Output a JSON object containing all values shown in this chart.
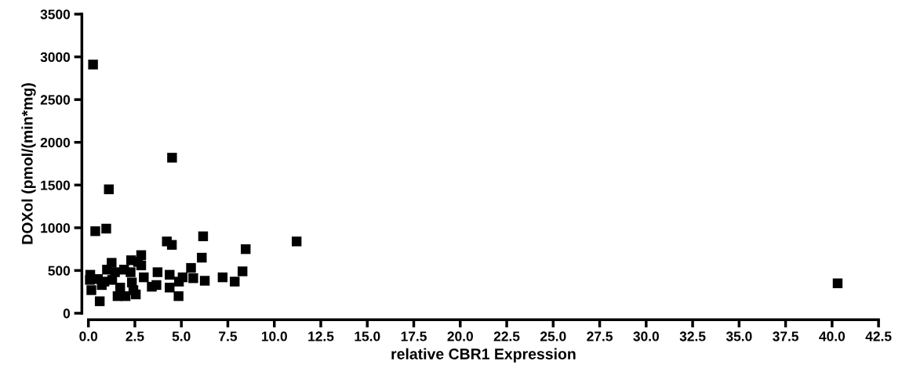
{
  "chart_data": {
    "type": "scatter",
    "xlabel": "relative CBR1 Expression",
    "ylabel": "DOXol (pmol/(min*mg)",
    "marker": "square",
    "grid": false,
    "xlim": [
      0,
      42.5
    ],
    "xticks": [
      {
        "value": 0,
        "label": "0.0"
      },
      {
        "value": 2.5,
        "label": "2.5"
      },
      {
        "value": 5,
        "label": "5.0"
      },
      {
        "value": 7.5,
        "label": "7.5"
      },
      {
        "value": 10,
        "label": "10.0"
      },
      {
        "value": 12.5,
        "label": "12.5"
      },
      {
        "value": 15,
        "label": "15.0"
      },
      {
        "value": 17.5,
        "label": "17.5"
      },
      {
        "value": 20,
        "label": "20.0"
      },
      {
        "value": 22.5,
        "label": "22.5"
      },
      {
        "value": 25,
        "label": "25.0"
      },
      {
        "value": 27.5,
        "label": "27.5"
      },
      {
        "value": 30,
        "label": "30.0"
      },
      {
        "value": 32.5,
        "label": "32.5"
      },
      {
        "value": 35,
        "label": "35.0"
      },
      {
        "value": 37.5,
        "label": "37.5"
      },
      {
        "value": 40,
        "label": "40.0"
      },
      {
        "value": 42.5,
        "label": "42.5"
      }
    ],
    "ylim": [
      0,
      3500
    ],
    "yticks": [
      0,
      500,
      1000,
      1500,
      2000,
      2500,
      3000,
      3500
    ],
    "series": [
      {
        "color": "#000000",
        "x": [
          0.25,
          4.5,
          1.1,
          0.37,
          0.96,
          11.2,
          40.3,
          4.22,
          4.49,
          6.17,
          8.46,
          6.1,
          8.29,
          7.87,
          7.22,
          6.26,
          5.64,
          5.52,
          5.07,
          4.85,
          4.37,
          4.37,
          4.87,
          3.72,
          3.66,
          3.41,
          2.84,
          2.84,
          2.98,
          2.3,
          2.67,
          1.25,
          1.0,
          2.55,
          2.0,
          1.57,
          0.61,
          0.08,
          0.16,
          0.72,
          0.51,
          1.43,
          1.71,
          2.27,
          2.34,
          2.42,
          1.28,
          0.1,
          0.86,
          1.92
        ],
        "values": [
          2910,
          1820,
          1450,
          960,
          990,
          840,
          350,
          840,
          800,
          900,
          750,
          650,
          490,
          370,
          420,
          380,
          410,
          530,
          420,
          200,
          450,
          300,
          370,
          480,
          330,
          310,
          680,
          560,
          420,
          620,
          600,
          590,
          510,
          220,
          200,
          200,
          140,
          390,
          270,
          330,
          400,
          480,
          300,
          480,
          360,
          270,
          390,
          450,
          370,
          510
        ]
      }
    ]
  }
}
